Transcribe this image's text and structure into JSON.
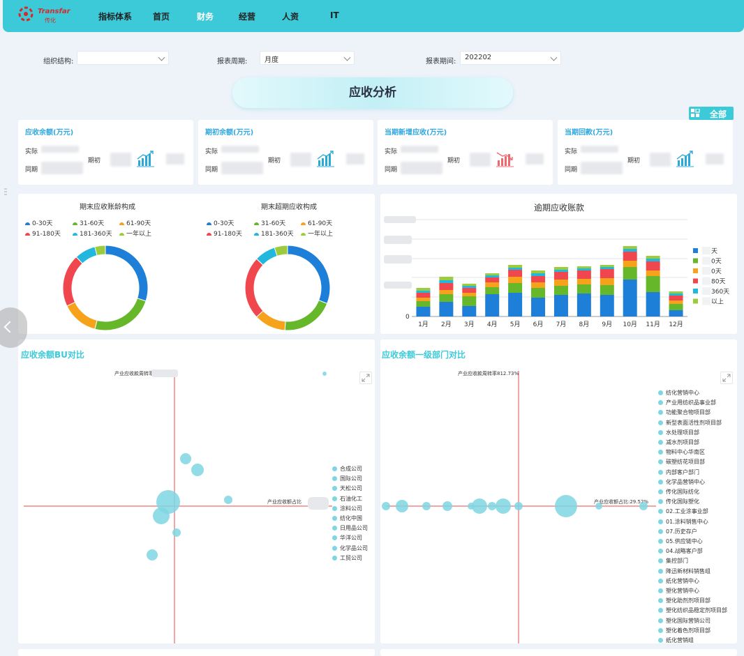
{
  "nav": {
    "brand": "Transfar",
    "brand_sub": "传化",
    "items": [
      {
        "label": "指标体系",
        "active": false
      },
      {
        "label": "首页",
        "active": false
      },
      {
        "label": "财务",
        "active": true
      },
      {
        "label": "经营",
        "active": false
      },
      {
        "label": "人资",
        "active": false
      },
      {
        "label": "IT",
        "active": false
      }
    ]
  },
  "filters": {
    "org_label": "组织结构:",
    "org_value": "",
    "period_label": "报表周期:",
    "period_value": "月度",
    "date_label": "报表期间:",
    "date_value": "202202"
  },
  "page_title": "应收分析",
  "all_button": "全部",
  "kpis": [
    {
      "title": "应收余额(万元)",
      "actual": "实际",
      "same": "同期",
      "begin": "期初",
      "trend": "up"
    },
    {
      "title": "期初余额(万元)",
      "actual": "实际",
      "same": "同期",
      "begin": "期初",
      "trend": "up"
    },
    {
      "title": "当期新增应收(万元)",
      "actual": "实际",
      "same": "同期",
      "begin": "期初",
      "trend": "down"
    },
    {
      "title": "当期回款(万元)",
      "actual": "实际",
      "same": "同期",
      "begin": "期初",
      "trend": "up"
    }
  ],
  "aging_legend": [
    {
      "label": "0-30天",
      "color": "#1e7fd8"
    },
    {
      "label": "31-60天",
      "color": "#66b82a"
    },
    {
      "label": "61-90天",
      "color": "#f6a21b"
    },
    {
      "label": "91-180天",
      "color": "#f0474e"
    },
    {
      "label": "181-360天",
      "color": "#22b8dd"
    },
    {
      "label": "一年以上",
      "color": "#9ccc3b"
    }
  ],
  "chart_data": [
    {
      "type": "pie",
      "title": "期末应收账龄构成",
      "categories": [
        "0-30天",
        "31-60天",
        "61-90天",
        "91-180天",
        "181-360天",
        "一年以上"
      ],
      "values": [
        30,
        24,
        14,
        20,
        8,
        4
      ],
      "donut": true
    },
    {
      "type": "pie",
      "title": "期末超期应收构成",
      "categories": [
        "0-30天",
        "31-60天",
        "61-90天",
        "91-180天",
        "181-360天",
        "一年以上"
      ],
      "values": [
        31,
        20,
        12,
        24,
        8,
        5
      ],
      "donut": true
    },
    {
      "type": "bar",
      "stacked": true,
      "title": "逾期应收账款",
      "categories": [
        "1月",
        "2月",
        "3月",
        "4月",
        "5月",
        "6月",
        "7月",
        "8月",
        "9月",
        "10月",
        "11月",
        "12月"
      ],
      "legend_visible_text": [
        "天",
        "0天",
        "0天",
        "80天",
        "360天",
        "以上"
      ],
      "ylabel_visible_tick": "0",
      "series": [
        {
          "color": "#1e7fd8",
          "values": [
            14,
            21,
            15,
            32,
            34,
            27,
            31,
            33,
            31,
            53,
            35,
            9
          ]
        },
        {
          "color": "#66b82a",
          "values": [
            8,
            11,
            14,
            10,
            14,
            14,
            13,
            13,
            14,
            18,
            23,
            9
          ]
        },
        {
          "color": "#f6a21b",
          "values": [
            5,
            6,
            5,
            7,
            9,
            8,
            9,
            8,
            10,
            9,
            8,
            5
          ]
        },
        {
          "color": "#f0474e",
          "values": [
            7,
            10,
            7,
            7,
            10,
            9,
            11,
            12,
            13,
            13,
            13,
            7
          ]
        },
        {
          "color": "#22b8dd",
          "values": [
            3,
            4,
            3,
            3,
            3,
            4,
            3,
            3,
            3,
            4,
            4,
            3
          ]
        },
        {
          "color": "#9ccc3b",
          "values": [
            4,
            5,
            3,
            3,
            4,
            4,
            4,
            3,
            3,
            4,
            4,
            3
          ]
        }
      ]
    },
    {
      "type": "scatter",
      "title": "应收余额BU对比",
      "y_axis_label": "产业应收款周转率",
      "x_axis_label": "产业应收额占比",
      "series_names": [
        "合成公司",
        "国际公司",
        "天松公司",
        "石油化工",
        "涂料公司",
        "纺化中国",
        "日用品公司",
        "华洋公司",
        "化学品公司",
        "工贸公司"
      ]
    },
    {
      "type": "scatter",
      "title": "应收余额一级部门对比",
      "y_axis_label": "产业应收款周转率812.73%",
      "x_axis_label": "产业应收额占比:29.52%",
      "series_names": [
        "纺化营销中心",
        "产业用纺织品事业部",
        "功能聚合物项目部",
        "新型表面活性剂项目部",
        "水处理项目部",
        "减水剂项目部",
        "物料中心华南区",
        "碳塑纺花项目部",
        "内部客户部门",
        "化学品营销中心",
        "传化国际纺化",
        "传化国际塑化",
        "02.工业涂事业部",
        "01.涂料销售中心",
        "07.历史存户",
        "05.供应链中心",
        "04.战略客户部",
        "集控部门",
        "降迅新材料销售组",
        "纸化营销中心",
        "塑化营销中心",
        "塑化助剂剂项目部",
        "塑化纺织品稳定剂项目部",
        "塑化国际营销公司",
        "塑化着色剂项目部",
        "纸化营销组"
      ]
    }
  ]
}
